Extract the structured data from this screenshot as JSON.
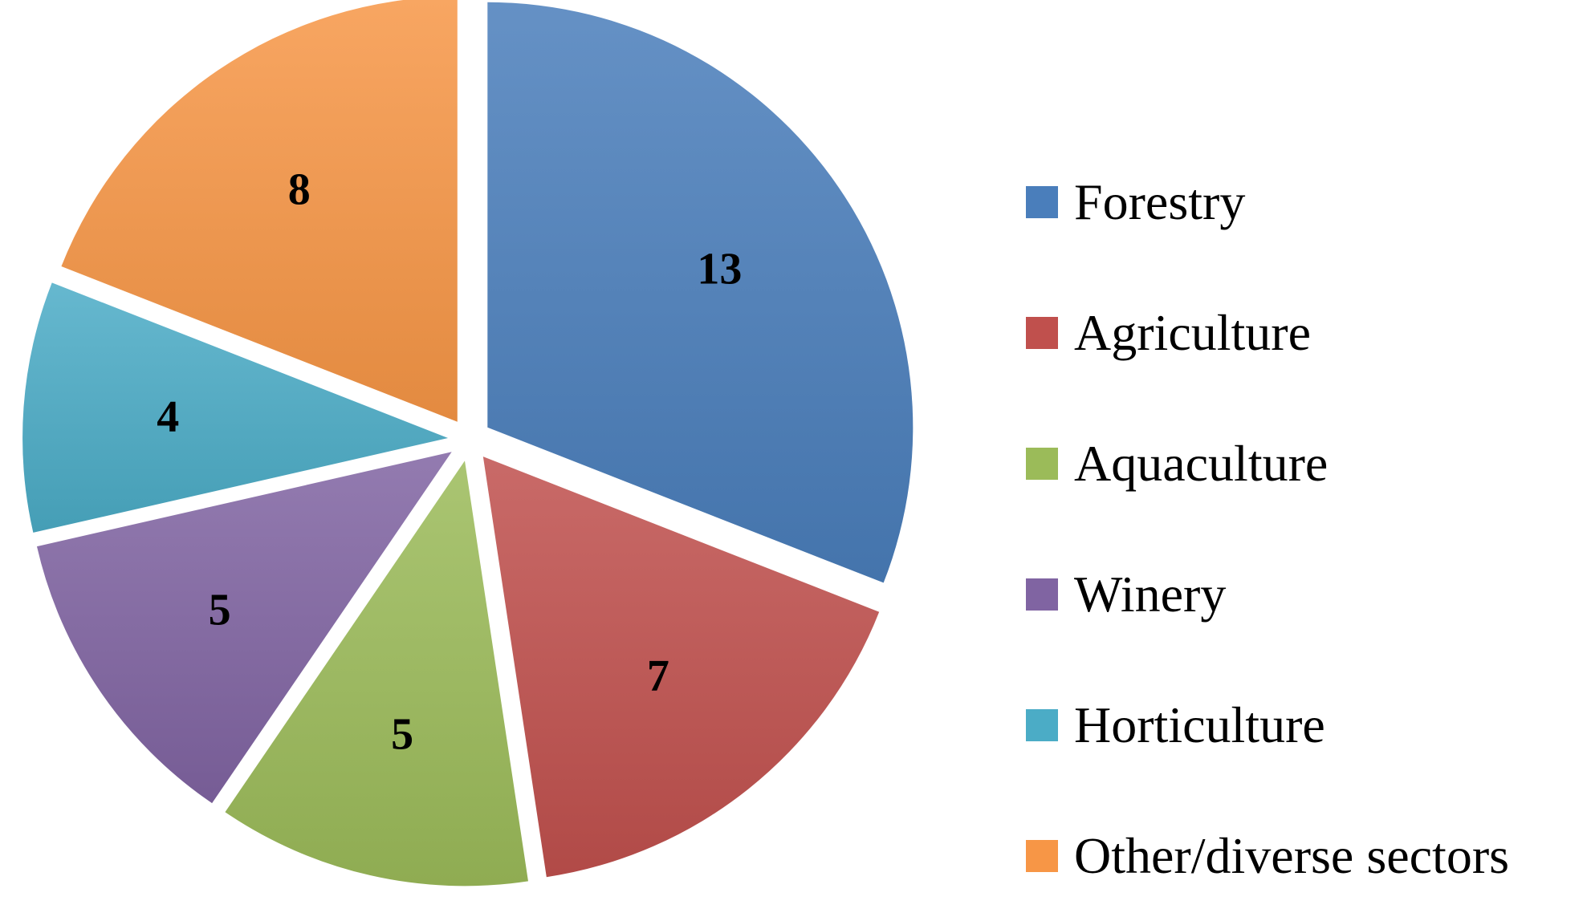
{
  "chart_data": {
    "type": "pie",
    "title": "",
    "categories": [
      "Forestry",
      "Agriculture",
      "Aquaculture",
      "Winery",
      "Horticulture",
      "Other/diverse sectors"
    ],
    "values": [
      13,
      7,
      5,
      5,
      4,
      8
    ],
    "colors": [
      "#4A7EBB",
      "#C0504D",
      "#9BBB59",
      "#8064A2",
      "#4BACC6",
      "#F79646"
    ],
    "exploded": true,
    "legend_position": "right"
  },
  "legend": {
    "items": [
      {
        "label": "Forestry",
        "color": "#4A7EBB"
      },
      {
        "label": "Agriculture",
        "color": "#C0504D"
      },
      {
        "label": "Aquaculture",
        "color": "#9BBB59"
      },
      {
        "label": "Winery",
        "color": "#8064A2"
      },
      {
        "label": "Horticulture",
        "color": "#4BACC6"
      },
      {
        "label": "Other/diverse sectors",
        "color": "#F79646"
      }
    ]
  }
}
